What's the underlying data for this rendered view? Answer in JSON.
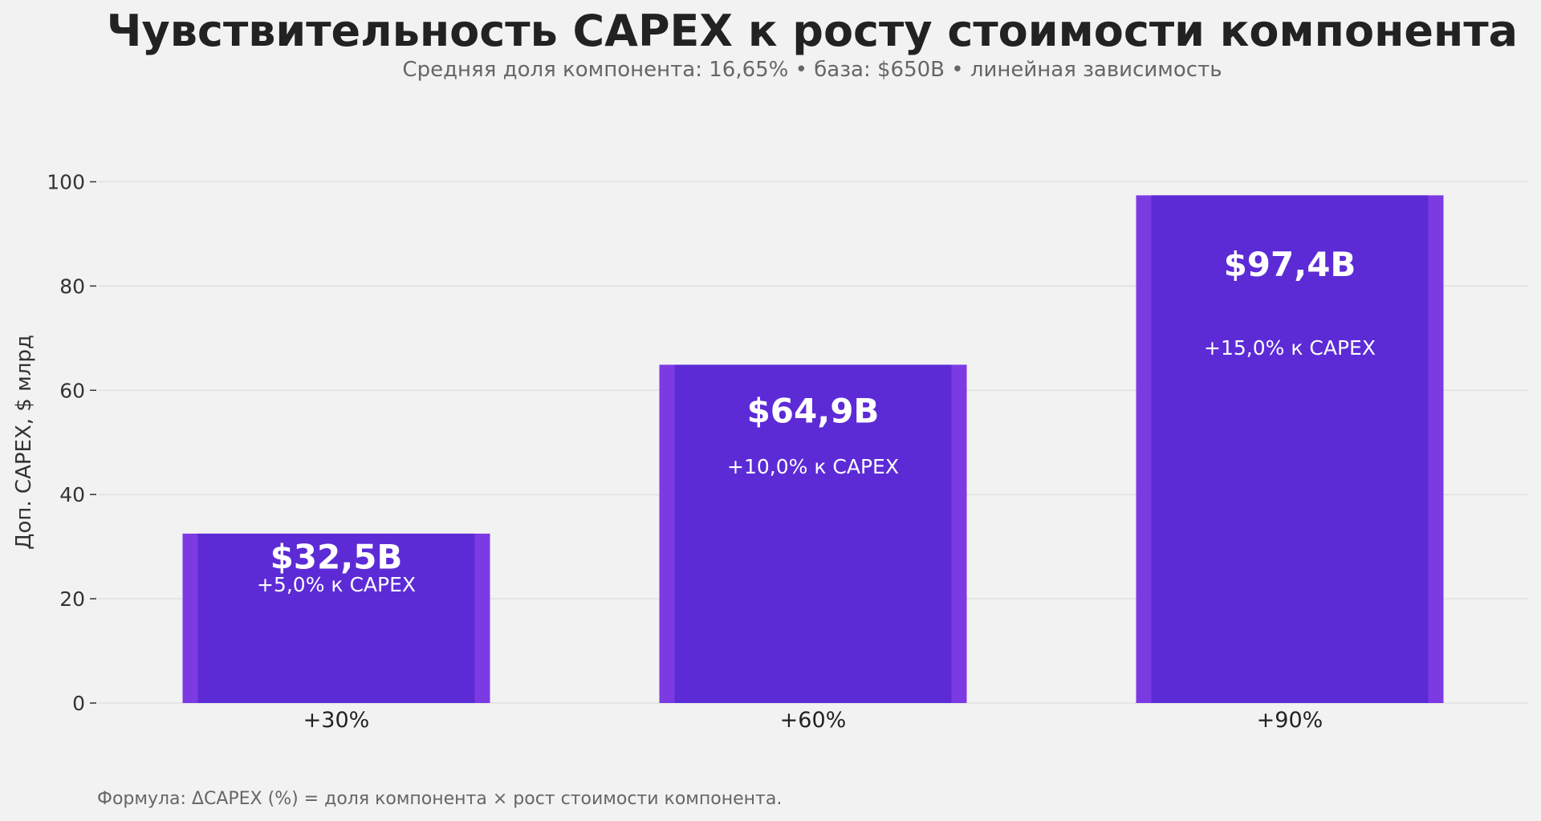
{
  "chart_data": {
    "type": "bar",
    "title": "Чувствительность CAPEX к росту стоимости компонента",
    "subtitle": "Средняя доля компонента: 16,65% • база: $650B • линейная зависимость",
    "xlabel": "",
    "ylabel": "Доп. CAPEX, $ млрд",
    "ylim": [
      0,
      107
    ],
    "yticks": [
      0,
      20,
      40,
      60,
      80,
      100
    ],
    "grid": true,
    "categories": [
      "+30%",
      "+60%",
      "+90%"
    ],
    "values": [
      32.5,
      64.9,
      97.4
    ],
    "value_labels": [
      "$32,5B",
      "$64,9B",
      "$97,4B"
    ],
    "sub_labels": [
      "+5,0% к CAPEX",
      "+10,0% к CAPEX",
      "+15,0% к CAPEX"
    ],
    "footnote": "Формула: ΔCAPEX (%) = доля компонента × рост стоимости компонента.",
    "colors": {
      "bar": "#5c2bd6",
      "bar_edge": "#7c3ae3",
      "background": "#f2f2f2",
      "grid": "#e4e4e4",
      "text": "#222222",
      "muted": "#666666"
    }
  }
}
